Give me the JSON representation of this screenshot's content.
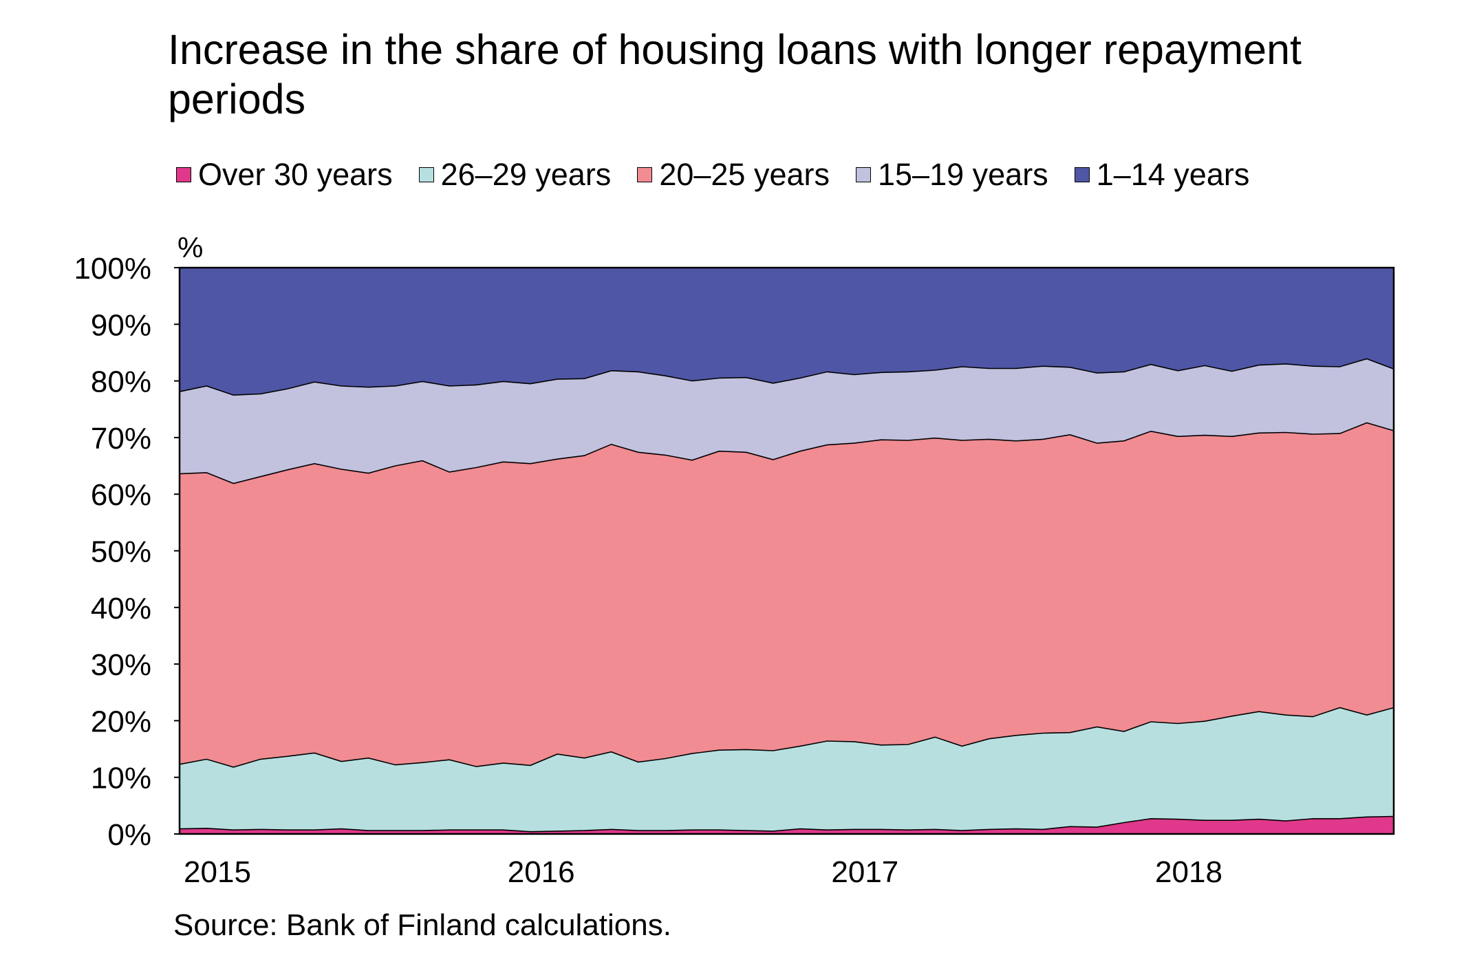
{
  "chart_data": {
    "type": "area",
    "stacked": true,
    "title": "Increase in the share of housing loans with longer repayment periods",
    "ylabel": "%",
    "xlabel": "",
    "ylim": [
      0,
      100
    ],
    "yticks": [
      "0%",
      "10%",
      "20%",
      "30%",
      "40%",
      "50%",
      "60%",
      "70%",
      "80%",
      "90%",
      "100%"
    ],
    "xticks": [
      "2015",
      "2016",
      "2017",
      "2018"
    ],
    "x_start": "2015-01",
    "x_frequency": "monthly",
    "legend_position": "top",
    "grid": false,
    "series": [
      {
        "name": "Over 30 years",
        "color": "#e0388a",
        "values": [
          0.9,
          1.0,
          0.7,
          0.8,
          0.7,
          0.7,
          0.9,
          0.6,
          0.6,
          0.6,
          0.7,
          0.7,
          0.7,
          0.4,
          0.5,
          0.6,
          0.8,
          0.6,
          0.6,
          0.7,
          0.7,
          0.6,
          0.5,
          0.9,
          0.7,
          0.8,
          0.8,
          0.7,
          0.8,
          0.6,
          0.8,
          0.9,
          0.8,
          1.3,
          1.2,
          2.0,
          2.7,
          2.6,
          2.4,
          2.4,
          2.6,
          2.3,
          2.7,
          2.7,
          3.0,
          3.1
        ]
      },
      {
        "name": "26–29 years",
        "color": "#b7dfe0",
        "values": [
          11.4,
          12.2,
          11.1,
          12.4,
          13.0,
          13.6,
          11.9,
          12.8,
          11.6,
          12.0,
          12.4,
          11.2,
          11.8,
          11.7,
          13.6,
          12.8,
          13.7,
          12.1,
          12.7,
          13.5,
          14.1,
          14.3,
          14.2,
          14.6,
          15.7,
          15.5,
          14.9,
          15.1,
          16.3,
          14.9,
          16.0,
          16.5,
          17.0,
          16.6,
          17.7,
          16.1,
          17.1,
          16.9,
          17.5,
          18.4,
          19.0,
          18.7,
          18.0,
          19.6,
          18.0,
          19.2
        ]
      },
      {
        "name": "20–25 years",
        "color": "#f08c92",
        "values": [
          51.3,
          50.6,
          50.1,
          49.9,
          50.6,
          51.1,
          51.6,
          50.3,
          52.8,
          53.3,
          50.8,
          52.8,
          53.2,
          53.3,
          52.1,
          53.4,
          54.3,
          54.7,
          53.6,
          51.8,
          52.8,
          52.5,
          51.4,
          52.1,
          52.3,
          52.7,
          53.9,
          53.7,
          52.8,
          54.0,
          52.9,
          52.0,
          51.9,
          52.6,
          50.1,
          51.3,
          51.3,
          50.7,
          50.5,
          49.4,
          49.2,
          49.9,
          49.9,
          48.4,
          51.6,
          48.9
        ]
      },
      {
        "name": "15–19 years",
        "color": "#c2c1de",
        "values": [
          14.5,
          15.3,
          15.6,
          14.6,
          14.3,
          14.4,
          14.7,
          15.2,
          14.1,
          14.0,
          15.2,
          14.6,
          14.2,
          14.1,
          14.1,
          13.6,
          13.0,
          14.2,
          14.0,
          14.0,
          12.9,
          13.2,
          13.5,
          12.9,
          12.9,
          12.1,
          11.9,
          12.1,
          12.0,
          13.0,
          12.5,
          12.8,
          12.9,
          11.9,
          12.4,
          12.2,
          11.8,
          11.6,
          12.3,
          11.5,
          12.0,
          12.1,
          12.0,
          11.8,
          11.3,
          10.9
        ]
      },
      {
        "name": "1–14 years",
        "color": "#4f56a5",
        "values": [
          21.9,
          20.9,
          22.5,
          22.3,
          21.4,
          20.2,
          20.9,
          21.1,
          20.9,
          20.1,
          20.9,
          20.7,
          20.1,
          20.5,
          19.7,
          19.6,
          18.2,
          18.4,
          19.1,
          20.0,
          19.5,
          19.4,
          20.4,
          19.5,
          18.4,
          18.9,
          18.5,
          18.4,
          18.1,
          17.5,
          17.8,
          17.8,
          17.4,
          17.6,
          18.6,
          18.4,
          17.1,
          18.2,
          17.3,
          18.3,
          17.2,
          17.0,
          17.4,
          17.5,
          16.1,
          17.9
        ]
      }
    ]
  },
  "source_text": "Source: Bank of Finland calculations."
}
